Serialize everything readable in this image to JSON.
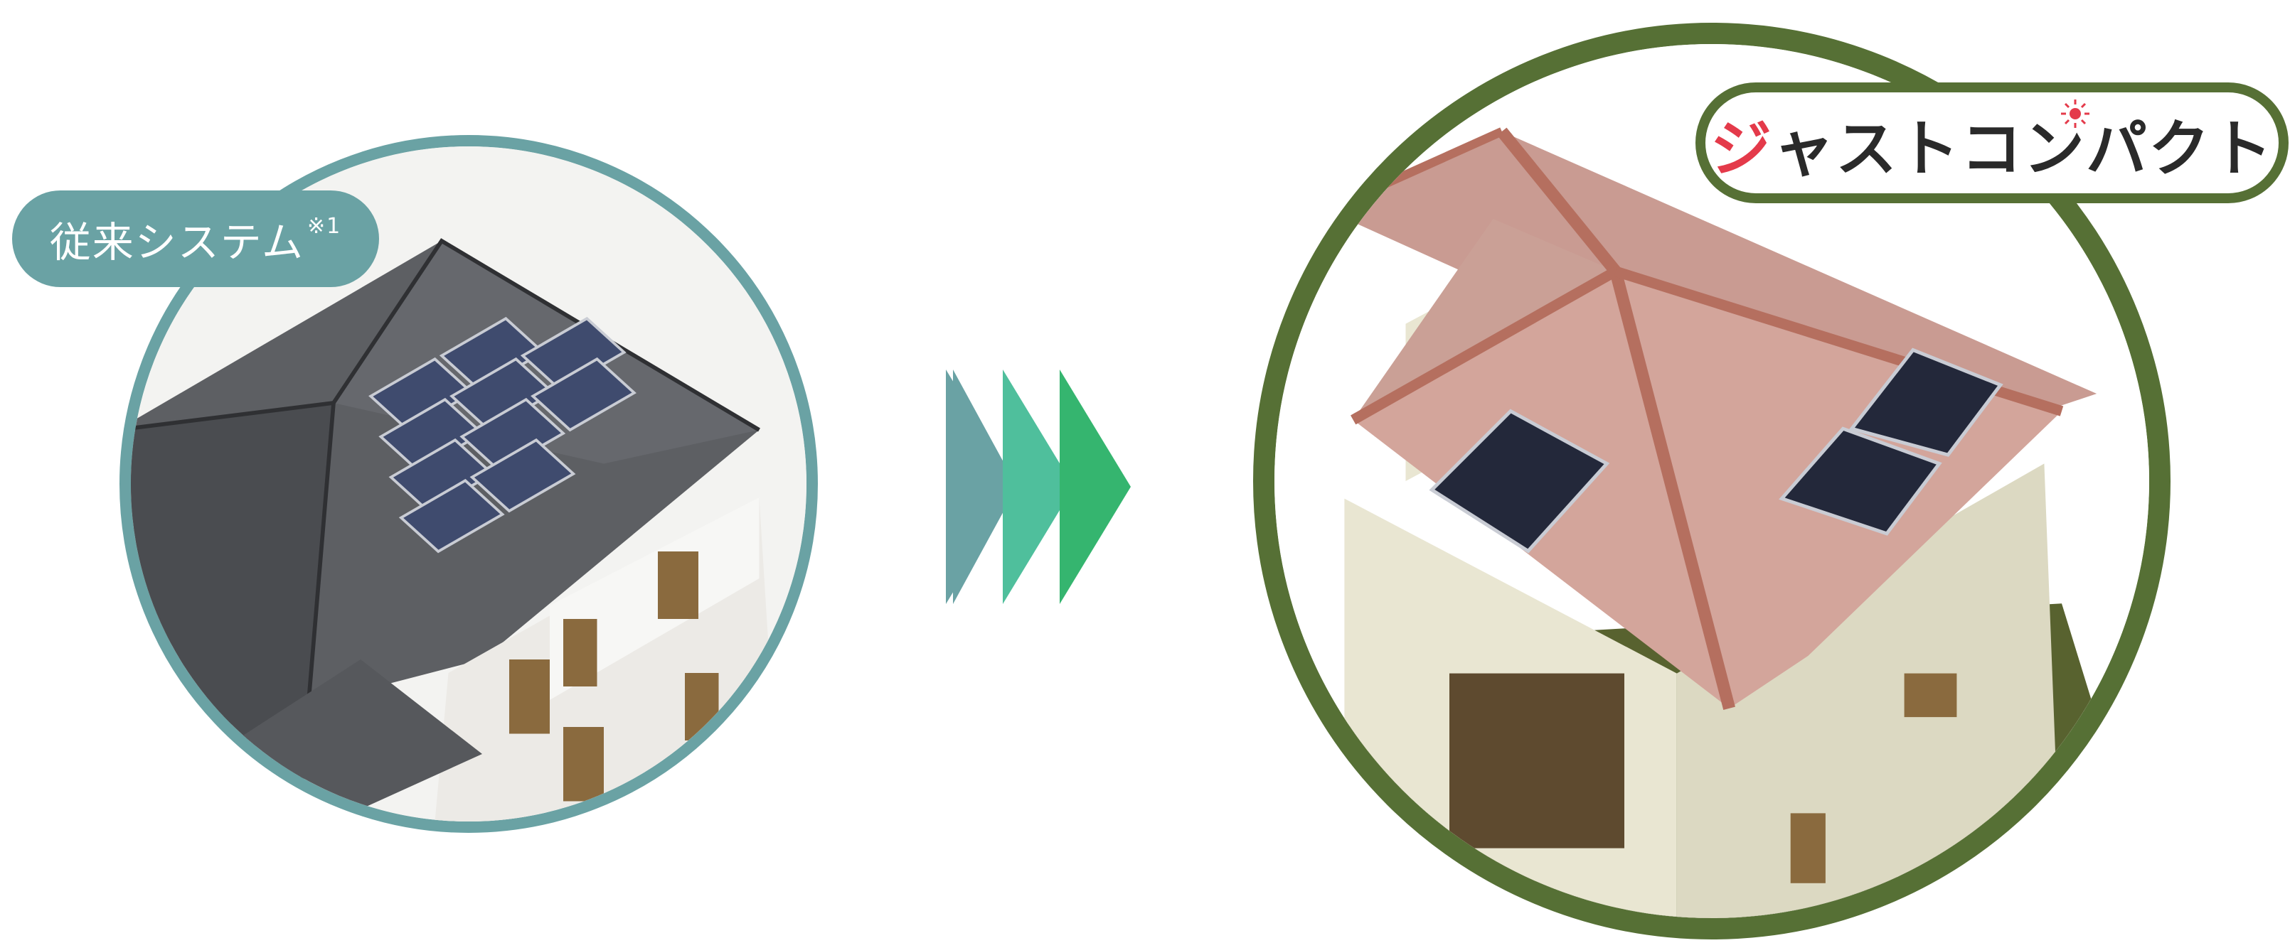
{
  "old_system": {
    "label": "従来システム",
    "note_mark": "※1",
    "ring_color": "#6aa2a4"
  },
  "new_system": {
    "logo_first_char": "ジ",
    "logo_rest": "ャストコンパクト",
    "ring_color": "#567035",
    "accent_color": "#e43a4a"
  },
  "arrows": {
    "colors": [
      "#6aa2a4",
      "#4fbf9c",
      "#35b56f"
    ],
    "icon": "triple-chevron-right-icon"
  }
}
